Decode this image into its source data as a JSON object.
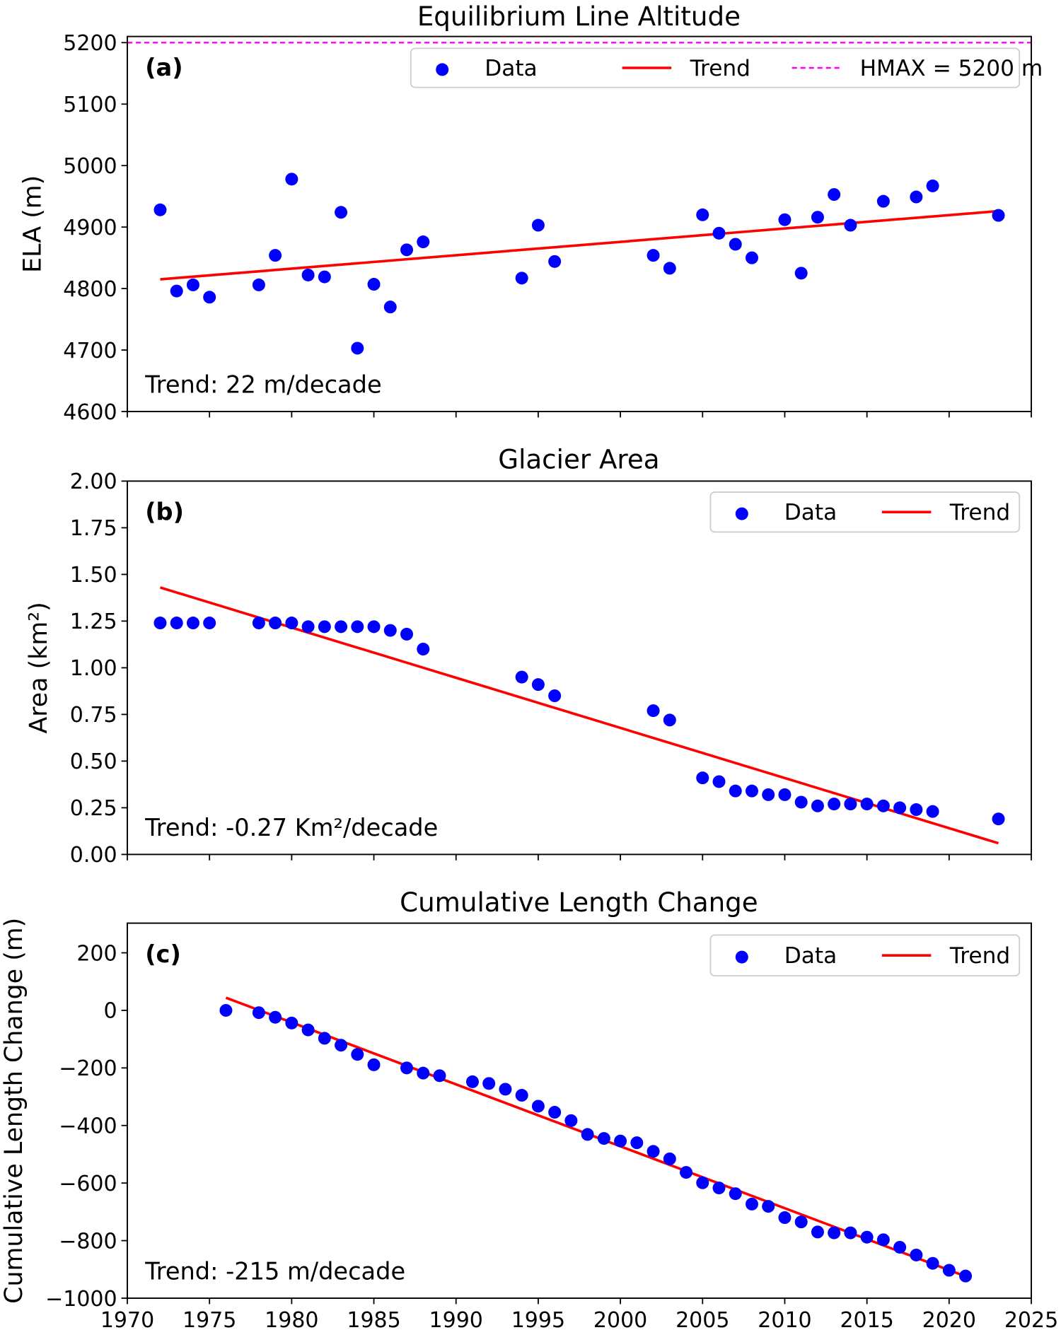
{
  "colors": {
    "data": "#0000ff",
    "trend": "#ff0000",
    "hmax": "#ff00ff",
    "axes": "#000000"
  },
  "chart_data": [
    {
      "type": "scatter",
      "title": "Equilibrium Line Altitude",
      "panel_label": "(a)",
      "ylabel": "ELA (m)",
      "xlim": [
        1970,
        2025
      ],
      "ylim": [
        4600,
        5210
      ],
      "yticks": [
        "4600",
        "4700",
        "4800",
        "4900",
        "5000",
        "5100",
        "5200"
      ],
      "annotation": "Trend: 22 m/decade",
      "legend": {
        "placement": "top-right",
        "entries": [
          "Data",
          "Trend",
          "HMAX = 5200 m"
        ]
      },
      "hmax": 5200,
      "x": [
        1972,
        1973,
        1974,
        1975,
        1978,
        1979,
        1980,
        1981,
        1982,
        1983,
        1984,
        1985,
        1986,
        1987,
        1988,
        1994,
        1995,
        1996,
        2002,
        2003,
        2005,
        2006,
        2007,
        2008,
        2010,
        2011,
        2012,
        2013,
        2014,
        2016,
        2018,
        2019,
        2023
      ],
      "y": [
        4928,
        4796,
        4806,
        4786,
        4806,
        4854,
        4978,
        4822,
        4819,
        4924,
        4703,
        4807,
        4770,
        4863,
        4876,
        4817,
        4903,
        4844,
        4854,
        4833,
        4920,
        4890,
        4872,
        4850,
        4912,
        4825,
        4916,
        4953,
        4903,
        4942,
        4949,
        4967,
        4919
      ],
      "trend": {
        "x": [
          1972,
          2023
        ],
        "y": [
          4815,
          4926
        ]
      }
    },
    {
      "type": "scatter",
      "title": "Glacier Area",
      "panel_label": "(b)",
      "ylabel": "Area (km²)",
      "xlim": [
        1970,
        2025
      ],
      "ylim": [
        0,
        2
      ],
      "yticks": [
        "0.00",
        "0.25",
        "0.50",
        "0.75",
        "1.00",
        "1.25",
        "1.50",
        "1.75",
        "2.00"
      ],
      "annotation": "Trend: -0.27 Km²/decade",
      "legend": {
        "placement": "top-right",
        "entries": [
          "Data",
          "Trend"
        ]
      },
      "x": [
        1972,
        1973,
        1974,
        1975,
        1978,
        1979,
        1980,
        1981,
        1982,
        1983,
        1984,
        1985,
        1986,
        1987,
        1988,
        1994,
        1995,
        1996,
        2002,
        2003,
        2005,
        2006,
        2007,
        2008,
        2009,
        2010,
        2011,
        2012,
        2013,
        2014,
        2015,
        2016,
        2017,
        2018,
        2019,
        2023
      ],
      "y": [
        1.24,
        1.24,
        1.24,
        1.24,
        1.24,
        1.24,
        1.24,
        1.22,
        1.22,
        1.22,
        1.22,
        1.22,
        1.2,
        1.18,
        1.1,
        0.95,
        0.91,
        0.85,
        0.77,
        0.72,
        0.41,
        0.39,
        0.34,
        0.34,
        0.32,
        0.32,
        0.28,
        0.26,
        0.27,
        0.27,
        0.27,
        0.26,
        0.25,
        0.24,
        0.23,
        0.19
      ],
      "trend": {
        "x": [
          1972,
          2023
        ],
        "y": [
          1.43,
          0.06
        ]
      }
    },
    {
      "type": "scatter",
      "title": "Cumulative Length Change",
      "panel_label": "(c)",
      "ylabel": "Cumulative Length Change (m)",
      "xlim": [
        1970,
        2025
      ],
      "ylim": [
        -1000,
        303
      ],
      "yticks": [
        "−1000",
        "−800",
        "−600",
        "−400",
        "−200",
        "0",
        "200"
      ],
      "xticks": [
        "1970",
        "1975",
        "1980",
        "1985",
        "1990",
        "1995",
        "2000",
        "2005",
        "2010",
        "2015",
        "2020",
        "2025"
      ],
      "annotation": "Trend: -215 m/decade",
      "legend": {
        "placement": "top-right",
        "entries": [
          "Data",
          "Trend"
        ]
      },
      "x": [
        1976,
        1978,
        1979,
        1980,
        1981,
        1982,
        1983,
        1984,
        1985,
        1987,
        1988,
        1989,
        1991,
        1992,
        1993,
        1994,
        1995,
        1996,
        1997,
        1998,
        1999,
        2000,
        2001,
        2002,
        2003,
        2004,
        2005,
        2006,
        2007,
        2008,
        2009,
        2010,
        2011,
        2012,
        2013,
        2014,
        2015,
        2016,
        2017,
        2018,
        2019,
        2020,
        2021
      ],
      "y": [
        0,
        -8,
        -24,
        -44,
        -68,
        -97,
        -121,
        -153,
        -189,
        -200,
        -218,
        -227,
        -248,
        -254,
        -274,
        -295,
        -333,
        -354,
        -383,
        -431,
        -445,
        -454,
        -460,
        -490,
        -516,
        -563,
        -599,
        -617,
        -637,
        -673,
        -681,
        -720,
        -735,
        -770,
        -773,
        -773,
        -788,
        -797,
        -823,
        -850,
        -879,
        -903,
        -923
      ],
      "trend": {
        "x": [
          1976,
          2021
        ],
        "y": [
          44,
          -924
        ]
      }
    }
  ]
}
